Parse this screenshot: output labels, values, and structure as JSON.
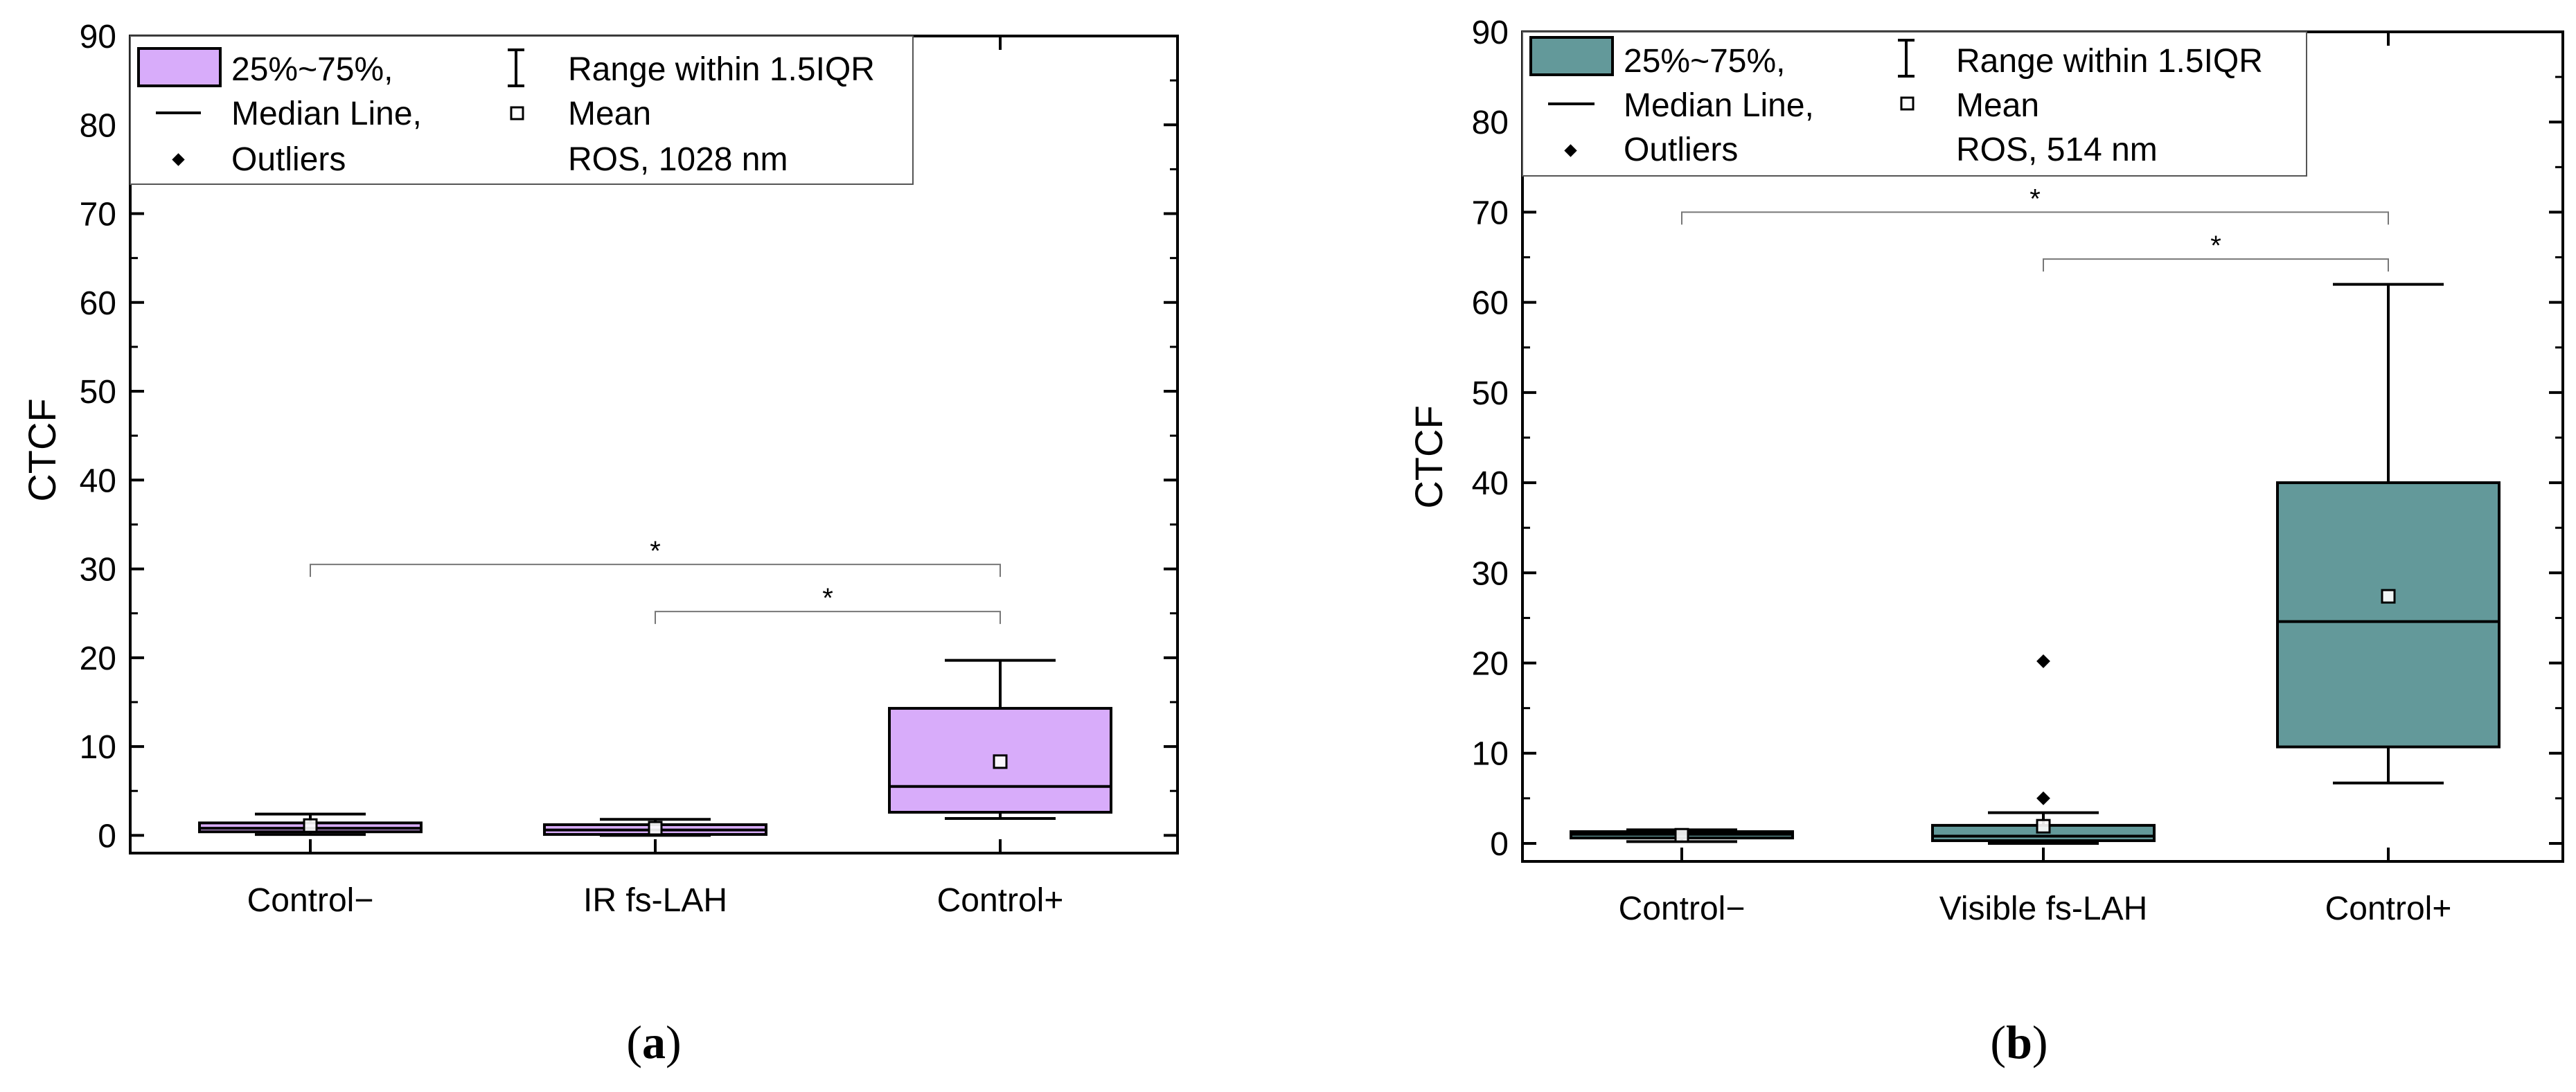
{
  "chart_data": [
    {
      "panel": "a",
      "type": "box",
      "ylabel": "CTCF",
      "ylim": [
        0,
        90
      ],
      "ymin_axis": -2,
      "yticks": [
        0,
        10,
        20,
        30,
        40,
        50,
        60,
        70,
        80,
        90
      ],
      "categories": [
        "Control−",
        "IR fs-LAH",
        "Control+"
      ],
      "fill_color": "#D8ACFA",
      "legend": {
        "box_label": "25%~75%,",
        "median_label": "Median Line,",
        "outlier_label": "Outliers",
        "range_label": "Range within 1.5IQR",
        "mean_label": "Mean",
        "condition": "ROS, 1028 nm",
        "placement": "top-left"
      },
      "boxes": [
        {
          "category": "Control−",
          "q1": 0.4,
          "median": 0.8,
          "q3": 1.4,
          "whisker_low": 0.1,
          "whisker_high": 2.4,
          "mean": 1.1,
          "outliers": []
        },
        {
          "category": "IR fs-LAH",
          "q1": 0.1,
          "median": 0.6,
          "q3": 1.2,
          "whisker_low": 0.0,
          "whisker_high": 1.8,
          "mean": 0.8,
          "outliers": []
        },
        {
          "category": "Control+",
          "q1": 2.6,
          "median": 5.5,
          "q3": 14.3,
          "whisker_low": 1.9,
          "whisker_high": 19.7,
          "mean": 8.3,
          "outliers": []
        }
      ],
      "significance": [
        {
          "from": 0,
          "to": 2,
          "y": 30.5,
          "label": "*"
        },
        {
          "from": 1,
          "to": 2,
          "y": 25.2,
          "label": "*"
        }
      ],
      "caption": "a"
    },
    {
      "panel": "b",
      "type": "box",
      "ylabel": "CTCF",
      "ylim": [
        0,
        90
      ],
      "ymin_axis": -2,
      "yticks": [
        0,
        10,
        20,
        30,
        40,
        50,
        60,
        70,
        80,
        90
      ],
      "categories": [
        "Control−",
        "Visible fs-LAH",
        "Control+"
      ],
      "fill_color": "#63999A",
      "legend": {
        "box_label": "25%~75%,",
        "median_label": "Median Line,",
        "outlier_label": "Outliers",
        "range_label": "Range within 1.5IQR",
        "mean_label": "Mean",
        "condition": "ROS, 514 nm",
        "placement": "top-left"
      },
      "boxes": [
        {
          "category": "Control−",
          "q1": 0.6,
          "median": 1.0,
          "q3": 1.3,
          "whisker_low": 0.2,
          "whisker_high": 1.5,
          "mean": 0.9,
          "outliers": []
        },
        {
          "category": "Visible fs-LAH",
          "q1": 0.3,
          "median": 0.8,
          "q3": 2.0,
          "whisker_low": 0.0,
          "whisker_high": 3.4,
          "mean": 1.9,
          "outliers": [
            5.0,
            20.2
          ]
        },
        {
          "category": "Control+",
          "q1": 10.7,
          "median": 24.6,
          "q3": 40.0,
          "whisker_low": 6.7,
          "whisker_high": 62.0,
          "mean": 27.4,
          "outliers": []
        }
      ],
      "significance": [
        {
          "from": 0,
          "to": 2,
          "y": 70.0,
          "label": "*"
        },
        {
          "from": 1,
          "to": 2,
          "y": 64.8,
          "label": "*"
        }
      ],
      "caption": "b"
    }
  ]
}
